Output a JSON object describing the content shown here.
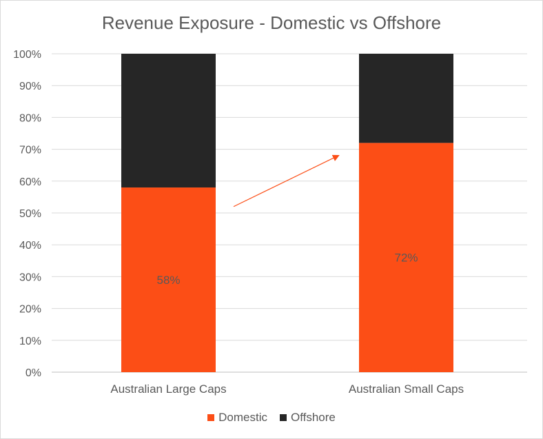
{
  "chart_data": {
    "type": "bar",
    "stacked": true,
    "title": "Revenue Exposure - Domestic vs Offshore",
    "categories": [
      "Australian Large Caps",
      "Australian Small Caps"
    ],
    "series": [
      {
        "name": "Domestic",
        "color": "#fc4e16",
        "values": [
          58,
          72
        ],
        "labels": [
          "58%",
          "72%"
        ]
      },
      {
        "name": "Offshore",
        "color": "#262626",
        "values": [
          42,
          28
        ]
      }
    ],
    "y_ticks": [
      "0%",
      "10%",
      "20%",
      "30%",
      "40%",
      "50%",
      "60%",
      "70%",
      "80%",
      "90%",
      "100%"
    ],
    "ylim": [
      0,
      100
    ],
    "grid": true,
    "legend_position": "bottom",
    "annotation": {
      "type": "arrow",
      "color": "#fc4e16",
      "from_category": 0,
      "to_category": 1
    }
  }
}
